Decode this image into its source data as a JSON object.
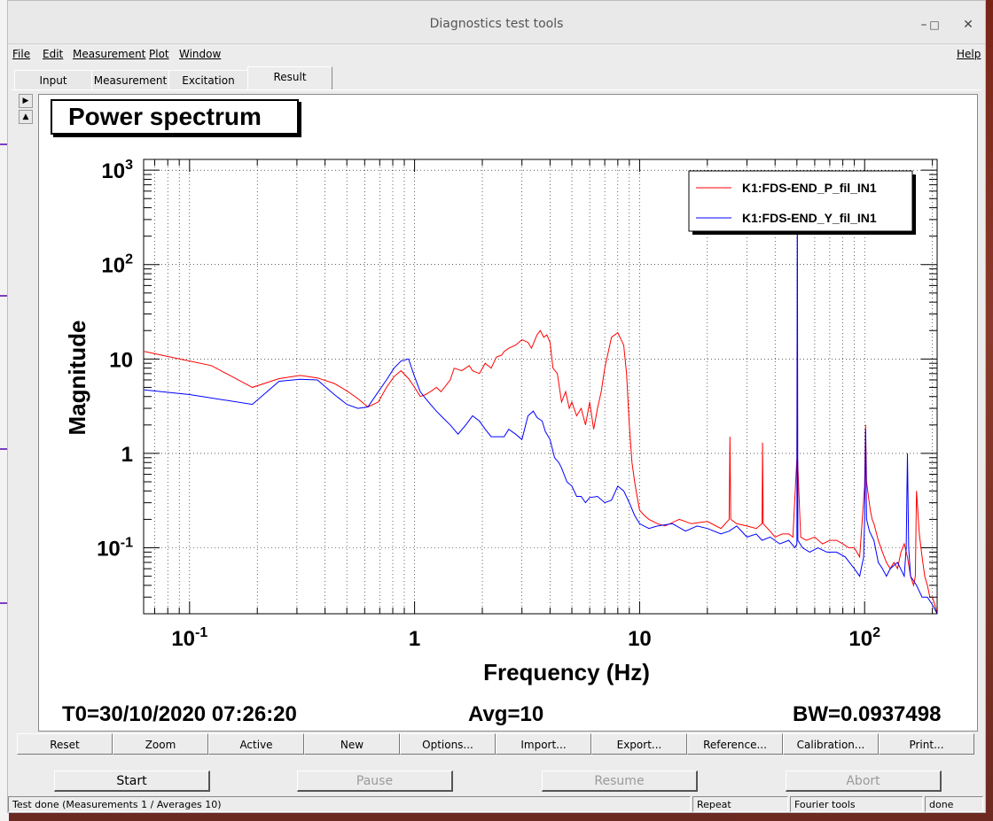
{
  "window": {
    "title": "Diagnostics test tools"
  },
  "menu": {
    "file": "File",
    "edit": "Edit",
    "measurement": "Measurement",
    "plot": "Plot",
    "window": "Window",
    "help": "Help"
  },
  "tabs": [
    "Input",
    "Measurement",
    "Excitation",
    "Result"
  ],
  "selected_tab": "Result",
  "plot": {
    "title": "Power spectrum",
    "t0": "T0=30/10/2020 07:26:20",
    "avg": "Avg=10",
    "bw": "BW=0.0937498"
  },
  "chart_data": {
    "type": "line",
    "title": "Power spectrum",
    "xlabel": "Frequency (Hz)",
    "ylabel": "Magnitude",
    "xscale": "log",
    "yscale": "log",
    "xlim": [
      0.0625,
      210
    ],
    "ylim": [
      0.02,
      1300
    ],
    "grid": true,
    "legend": "top-right",
    "x_tick_labels": [
      "10-1",
      "1",
      "10",
      "102"
    ],
    "y_tick_labels": [
      "10-1",
      "1",
      "10",
      "102",
      "103"
    ],
    "series": [
      {
        "name": "K1:FDS-END_P_fil_IN1",
        "color": "#ff0000",
        "x": [
          0.063,
          0.09,
          0.125,
          0.19,
          0.25,
          0.31,
          0.37,
          0.44,
          0.5,
          0.56,
          0.62,
          0.69,
          0.75,
          0.81,
          0.87,
          0.94,
          1.0,
          1.06,
          1.12,
          1.19,
          1.25,
          1.31,
          1.44,
          1.5,
          1.62,
          1.75,
          1.81,
          1.94,
          2.06,
          2.19,
          2.31,
          2.44,
          2.5,
          2.62,
          2.81,
          3.0,
          3.19,
          3.31,
          3.5,
          3.62,
          3.75,
          3.87,
          4.0,
          4.12,
          4.31,
          4.5,
          4.69,
          4.87,
          5.0,
          5.25,
          5.5,
          5.75,
          6.0,
          6.25,
          6.5,
          6.75,
          7.0,
          7.5,
          8.0,
          8.5,
          8.75,
          9.0,
          9.25,
          9.5,
          9.75,
          10.0,
          10.5,
          11.0,
          12.0,
          13.0,
          15.0,
          17.0,
          20.0,
          23.0,
          25.0,
          25.2,
          25.4,
          27.0,
          30.0,
          33.0,
          35.0,
          35.2,
          35.4,
          38.0,
          40.0,
          43.0,
          46.0,
          48.0,
          50.0,
          50.1,
          50.3,
          52.0,
          55.0,
          60.0,
          65.0,
          70.0,
          75.0,
          80.0,
          85.0,
          90.0,
          95.0,
          100.0,
          101.0,
          102.0,
          104.0,
          106.0,
          108.0,
          110.0,
          115.0,
          120.0,
          125.0,
          130.0,
          135.0,
          140.0,
          145.0,
          150.0,
          155.0,
          160.0,
          165.0,
          168.0,
          170.0,
          175.0,
          180.0,
          185.0,
          190.0,
          195.0,
          200.0,
          205.0,
          210.0
        ],
        "y": [
          12,
          10,
          8.5,
          5.0,
          6.2,
          6.7,
          6.3,
          5.5,
          4.6,
          3.8,
          3.1,
          3.5,
          5.0,
          6.5,
          7.5,
          6.2,
          5.0,
          4.0,
          4.2,
          4.6,
          5.0,
          4.5,
          6.0,
          8.0,
          7.5,
          8.5,
          7.5,
          7.0,
          9.0,
          8.0,
          10.5,
          11,
          12,
          13,
          14,
          16,
          15,
          13,
          18,
          20,
          17,
          18,
          15,
          8.0,
          7.0,
          3.5,
          4.5,
          3.0,
          3.5,
          2.5,
          3.0,
          2.0,
          3.5,
          1.8,
          3.0,
          4.5,
          8.0,
          17,
          19,
          14,
          7.0,
          2.0,
          0.8,
          0.5,
          0.35,
          0.25,
          0.22,
          0.2,
          0.18,
          0.17,
          0.2,
          0.18,
          0.19,
          0.16,
          0.2,
          1.5,
          0.2,
          0.18,
          0.17,
          0.16,
          0.18,
          1.3,
          0.18,
          0.15,
          0.13,
          0.14,
          0.14,
          0.13,
          0.9,
          14,
          0.9,
          0.13,
          0.12,
          0.13,
          0.11,
          0.12,
          0.12,
          0.11,
          0.1,
          0.1,
          0.08,
          0.45,
          2.0,
          0.5,
          0.35,
          0.25,
          0.2,
          0.18,
          0.12,
          0.09,
          0.07,
          0.06,
          0.07,
          0.06,
          0.09,
          0.11,
          0.08,
          0.05,
          0.04,
          0.05,
          0.4,
          0.14,
          0.08,
          0.05,
          0.04,
          0.03,
          0.03,
          0.025,
          0.02
        ]
      },
      {
        "name": "K1:FDS-END_Y_fil_IN1",
        "color": "#0000ff",
        "x": [
          0.063,
          0.1,
          0.19,
          0.25,
          0.31,
          0.37,
          0.44,
          0.5,
          0.56,
          0.62,
          0.69,
          0.75,
          0.81,
          0.87,
          0.94,
          1.0,
          1.06,
          1.12,
          1.19,
          1.25,
          1.31,
          1.44,
          1.56,
          1.69,
          1.81,
          1.94,
          2.06,
          2.19,
          2.31,
          2.5,
          2.62,
          2.81,
          3.0,
          3.19,
          3.37,
          3.5,
          3.69,
          3.81,
          4.0,
          4.19,
          4.37,
          4.5,
          4.75,
          5.0,
          5.25,
          5.5,
          5.75,
          6.0,
          6.5,
          7.0,
          7.5,
          8.0,
          8.5,
          9.0,
          9.5,
          10.0,
          11.0,
          12.0,
          14.0,
          16.0,
          18.0,
          20.0,
          23.0,
          25.0,
          27.0,
          30.0,
          33.0,
          35.0,
          38.0,
          42.0,
          46.0,
          49.0,
          50.0,
          50.2,
          50.5,
          53.0,
          57.0,
          62.0,
          68.0,
          75.0,
          82.0,
          90.0,
          95.0,
          99.0,
          100.0,
          101.0,
          102.0,
          105.0,
          110.0,
          115.0,
          120.0,
          125.0,
          130.0,
          140.0,
          150.0,
          153.0,
          155.0,
          157.0,
          160.0,
          170.0,
          180.0,
          190.0,
          200.0,
          210.0
        ],
        "y": [
          4.7,
          4.2,
          3.3,
          5.8,
          6.1,
          6.0,
          4.2,
          3.3,
          3.0,
          3.1,
          4.5,
          6.0,
          8.0,
          9.5,
          10,
          6.5,
          4.5,
          3.8,
          3.2,
          2.8,
          2.5,
          2.0,
          1.6,
          2.0,
          2.5,
          2.2,
          1.8,
          1.5,
          1.5,
          1.5,
          1.8,
          1.6,
          1.4,
          2.5,
          2.8,
          2.4,
          2.2,
          1.7,
          1.4,
          0.9,
          0.8,
          0.7,
          0.5,
          0.45,
          0.35,
          0.35,
          0.3,
          0.34,
          0.35,
          0.3,
          0.32,
          0.45,
          0.4,
          0.3,
          0.22,
          0.18,
          0.16,
          0.17,
          0.18,
          0.15,
          0.17,
          0.16,
          0.14,
          0.15,
          0.17,
          0.13,
          0.14,
          0.12,
          0.13,
          0.11,
          0.12,
          0.1,
          0.11,
          1000,
          0.12,
          0.1,
          0.09,
          0.1,
          0.09,
          0.09,
          0.08,
          0.06,
          0.05,
          0.08,
          0.2,
          1.8,
          0.2,
          0.15,
          0.12,
          0.07,
          0.06,
          0.05,
          0.06,
          0.07,
          0.05,
          0.1,
          1.0,
          0.1,
          0.05,
          0.04,
          0.03,
          0.03,
          0.025,
          0.02
        ]
      }
    ]
  },
  "toolbar": [
    "Reset",
    "Zoom",
    "Active",
    "New",
    "Options...",
    "Import...",
    "Export...",
    "Reference...",
    "Calibration...",
    "Print..."
  ],
  "controls": {
    "start": "Start",
    "pause": "Pause",
    "resume": "Resume",
    "abort": "Abort"
  },
  "statusbar": {
    "message": "Test done (Measurements 1 / Averages 10)",
    "mode": "Repeat",
    "tools": "Fourier tools",
    "state": "done"
  }
}
